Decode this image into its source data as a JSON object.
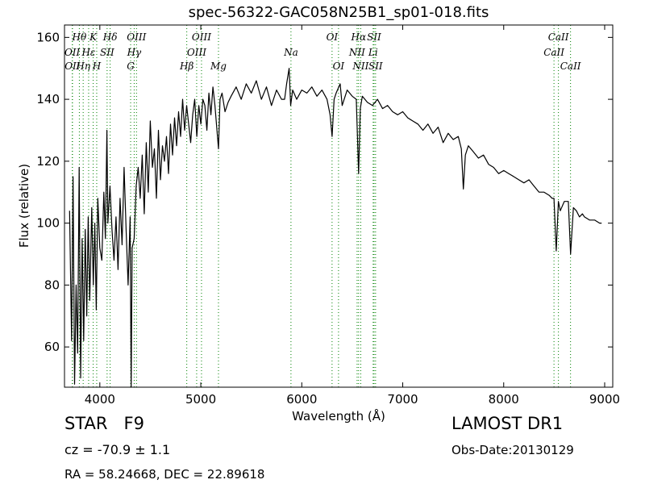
{
  "chart_data": {
    "type": "line",
    "title": "spec-56322-GAC058N25B1_sp01-018.fits",
    "xlabel": "Wavelength (Å)",
    "ylabel": "Flux (relative)",
    "xlim": [
      3650,
      9080
    ],
    "ylim": [
      47,
      164
    ],
    "xticks": [
      4000,
      5000,
      6000,
      7000,
      8000,
      9000
    ],
    "yticks": [
      60,
      80,
      100,
      120,
      140,
      160
    ],
    "grid": false,
    "series": [
      {
        "color": "#000000",
        "x": [
          3700,
          3720,
          3735,
          3750,
          3765,
          3780,
          3795,
          3810,
          3825,
          3840,
          3855,
          3870,
          3885,
          3900,
          3920,
          3935,
          3950,
          3965,
          3980,
          4000,
          4020,
          4040,
          4055,
          4070,
          4080,
          4100,
          4120,
          4140,
          4160,
          4180,
          4200,
          4220,
          4240,
          4260,
          4280,
          4300,
          4310,
          4320,
          4340,
          4360,
          4380,
          4400,
          4420,
          4440,
          4460,
          4480,
          4500,
          4520,
          4540,
          4560,
          4580,
          4600,
          4620,
          4640,
          4660,
          4680,
          4700,
          4720,
          4740,
          4760,
          4780,
          4800,
          4820,
          4840,
          4860,
          4880,
          4900,
          4920,
          4940,
          4960,
          4980,
          5000,
          5020,
          5040,
          5060,
          5080,
          5100,
          5120,
          5140,
          5160,
          5175,
          5190,
          5210,
          5240,
          5270,
          5300,
          5350,
          5400,
          5450,
          5500,
          5550,
          5600,
          5650,
          5700,
          5750,
          5800,
          5830,
          5850,
          5875,
          5890,
          5910,
          5950,
          6000,
          6050,
          6100,
          6150,
          6200,
          6250,
          6280,
          6300,
          6320,
          6340,
          6380,
          6400,
          6450,
          6500,
          6540,
          6563,
          6580,
          6600,
          6650,
          6700,
          6750,
          6800,
          6850,
          6900,
          6950,
          7000,
          7050,
          7100,
          7150,
          7200,
          7250,
          7300,
          7350,
          7400,
          7450,
          7500,
          7550,
          7580,
          7600,
          7620,
          7650,
          7700,
          7750,
          7800,
          7850,
          7900,
          7950,
          8000,
          8050,
          8100,
          8150,
          8200,
          8250,
          8300,
          8350,
          8400,
          8450,
          8480,
          8498,
          8520,
          8542,
          8560,
          8600,
          8640,
          8662,
          8690,
          8720,
          8750,
          8780,
          8800,
          8850,
          8900,
          8950,
          8970
        ],
        "y": [
          104,
          62,
          115,
          48,
          80,
          58,
          118,
          50,
          95,
          62,
          98,
          70,
          102,
          75,
          105,
          80,
          100,
          72,
          108,
          92,
          88,
          110,
          95,
          130,
          100,
          112,
          98,
          88,
          102,
          85,
          108,
          93,
          118,
          98,
          80,
          102,
          47,
          92,
          95,
          112,
          118,
          108,
          122,
          103,
          126,
          110,
          133,
          118,
          124,
          108,
          130,
          114,
          125,
          120,
          128,
          116,
          132,
          122,
          134,
          125,
          136,
          128,
          140,
          130,
          138,
          132,
          126,
          135,
          140,
          128,
          138,
          132,
          140,
          138,
          130,
          142,
          135,
          144,
          138,
          130,
          124,
          140,
          142,
          136,
          139,
          141,
          144,
          140,
          145,
          142,
          146,
          140,
          144,
          138,
          143,
          140,
          140,
          145,
          150,
          138,
          143,
          140,
          143,
          142,
          144,
          141,
          143,
          140,
          135,
          128,
          140,
          142,
          145,
          138,
          143,
          141,
          140,
          116,
          137,
          141,
          139,
          138,
          140,
          137,
          138,
          136,
          135,
          136,
          134,
          133,
          132,
          130,
          132,
          129,
          131,
          126,
          129,
          127,
          128,
          124,
          111,
          122,
          125,
          123,
          121,
          122,
          119,
          118,
          116,
          117,
          116,
          115,
          114,
          113,
          114,
          112,
          110,
          110,
          109,
          108,
          108,
          91,
          107,
          104,
          107,
          107,
          90,
          105,
          104,
          102,
          103,
          102,
          101,
          101,
          100,
          100
        ]
      }
    ],
    "lines": [
      {
        "label": "Hθ",
        "x": 3797,
        "row": 1,
        "color": "green"
      },
      {
        "label": "OII",
        "x": 3727,
        "row": 2,
        "color": "green"
      },
      {
        "label": "OII",
        "x": 3729,
        "row": 3,
        "color": "green"
      },
      {
        "label": "Hη",
        "x": 3835,
        "row": 3,
        "color": "green"
      },
      {
        "label": "K",
        "x": 3934,
        "row": 1,
        "color": "green"
      },
      {
        "label": "Hε",
        "x": 3889,
        "row": 2,
        "color": "green"
      },
      {
        "label": "SII",
        "x": 4072,
        "row": 2,
        "color": "green"
      },
      {
        "label": "H",
        "x": 3969,
        "row": 3,
        "color": "green"
      },
      {
        "label": "Hδ",
        "x": 4102,
        "row": 1,
        "color": "green"
      },
      {
        "label": "OIII",
        "x": 4363,
        "row": 1,
        "color": "green"
      },
      {
        "label": "Hγ",
        "x": 4340,
        "row": 2,
        "color": "green"
      },
      {
        "label": "G",
        "x": 4305,
        "row": 3,
        "color": "green"
      },
      {
        "label": "OIII",
        "x": 5007,
        "row": 1,
        "color": "green"
      },
      {
        "label": "OIII",
        "x": 4959,
        "row": 2,
        "color": "green"
      },
      {
        "label": "Hβ",
        "x": 4861,
        "row": 3,
        "color": "green"
      },
      {
        "label": "Mg",
        "x": 5175,
        "row": 3,
        "color": "green"
      },
      {
        "label": "Na",
        "x": 5893,
        "row": 2,
        "color": "green"
      },
      {
        "label": "OI",
        "x": 6300,
        "row": 1,
        "color": "green"
      },
      {
        "label": "OI",
        "x": 6364,
        "row": 3,
        "color": "green"
      },
      {
        "label": "Hα",
        "x": 6563,
        "row": 1,
        "color": "green"
      },
      {
        "label": "SII",
        "x": 6716,
        "row": 1,
        "color": "green"
      },
      {
        "label": "NII",
        "x": 6548,
        "row": 2,
        "color": "green"
      },
      {
        "label": "Li",
        "x": 6707,
        "row": 2,
        "color": "green"
      },
      {
        "label": "NII",
        "x": 6584,
        "row": 3,
        "color": "green"
      },
      {
        "label": "SII",
        "x": 6731,
        "row": 3,
        "color": "green"
      },
      {
        "label": "CaII",
        "x": 8542,
        "row": 1,
        "color": "green"
      },
      {
        "label": "CaII",
        "x": 8498,
        "row": 2,
        "color": "green"
      },
      {
        "label": "CaII",
        "x": 8662,
        "row": 3,
        "color": "green"
      }
    ]
  },
  "info": {
    "object_class": "STAR   F9",
    "redshift": "cz = -70.9 ± 1.1",
    "coords": "RA = 58.24668, DEC = 22.89618",
    "survey": "LAMOST DR1",
    "obs_date": "Obs-Date:20130129"
  }
}
